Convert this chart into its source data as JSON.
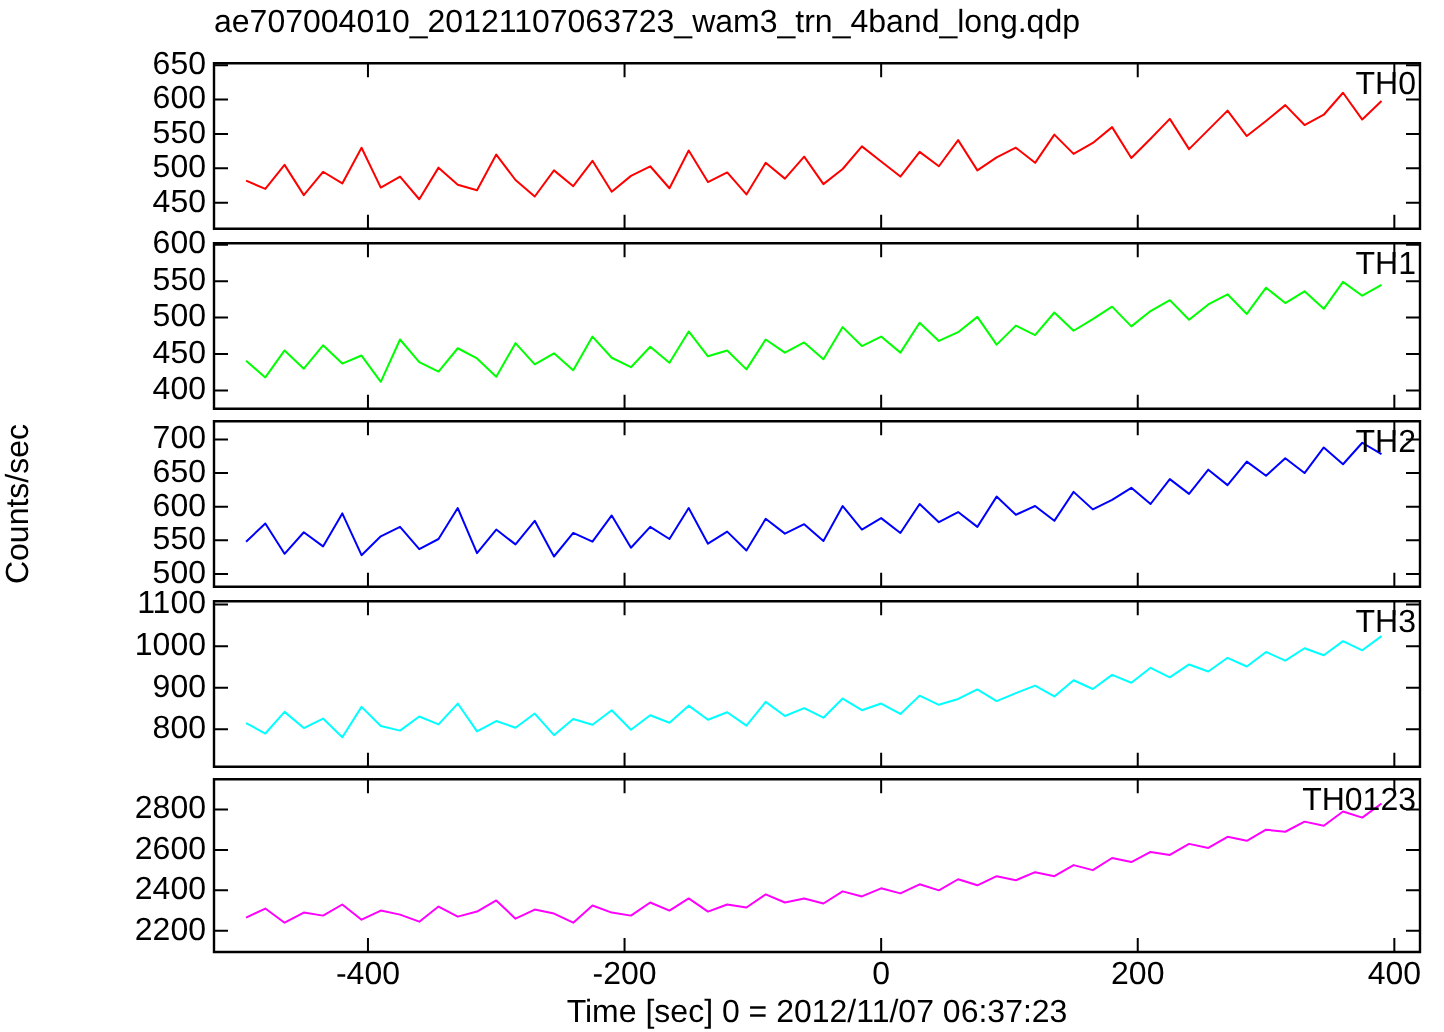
{
  "chart_data": [
    {
      "type": "line",
      "title": "ae707004010_20121107063723_wam3_trn_4band_long.qdp",
      "x": [
        -495,
        -480,
        -465,
        -450,
        -435,
        -420,
        -405,
        -390,
        -375,
        -360,
        -345,
        -330,
        -315,
        -300,
        -285,
        -270,
        -255,
        -240,
        -225,
        -210,
        -195,
        -180,
        -165,
        -150,
        -135,
        -120,
        -105,
        -90,
        -75,
        -60,
        -45,
        -30,
        -15,
        0,
        15,
        30,
        45,
        60,
        75,
        90,
        105,
        120,
        135,
        150,
        165,
        180,
        195,
        210,
        225,
        240,
        255,
        270,
        285,
        300,
        315,
        330,
        345,
        360,
        375,
        390
      ],
      "xlim": [
        -520,
        420
      ],
      "xticks": [
        -400,
        -200,
        0,
        200,
        400
      ],
      "ylim": [
        412,
        653
      ],
      "yticks": [
        450,
        500,
        550,
        600,
        650
      ],
      "tick_labels": "y",
      "series": [
        {
          "name": "TH0",
          "color": "#ff0000",
          "values": [
            482,
            470,
            505,
            461,
            495,
            478,
            530,
            472,
            488,
            455,
            501,
            476,
            468,
            520,
            483,
            459,
            497,
            474,
            511,
            466,
            489,
            503,
            471,
            526,
            480,
            494,
            462,
            508,
            485,
            517,
            477,
            499,
            532,
            510,
            488,
            524,
            503,
            541,
            497,
            516,
            530,
            508,
            549,
            521,
            537,
            560,
            515,
            543,
            572,
            528,
            556,
            584,
            547,
            569,
            592,
            563,
            578,
            610,
            571,
            598
          ]
        }
      ]
    },
    {
      "type": "line",
      "x": [
        -495,
        -480,
        -465,
        -450,
        -435,
        -420,
        -405,
        -390,
        -375,
        -360,
        -345,
        -330,
        -315,
        -300,
        -285,
        -270,
        -255,
        -240,
        -225,
        -210,
        -195,
        -180,
        -165,
        -150,
        -135,
        -120,
        -105,
        -90,
        -75,
        -60,
        -45,
        -30,
        -15,
        0,
        15,
        30,
        45,
        60,
        75,
        90,
        105,
        120,
        135,
        150,
        165,
        180,
        195,
        210,
        225,
        240,
        255,
        270,
        285,
        300,
        315,
        330,
        345,
        360,
        375,
        390
      ],
      "xlim": [
        -520,
        420
      ],
      "xticks": [
        -400,
        -200,
        0,
        200,
        400
      ],
      "ylim": [
        375,
        602
      ],
      "yticks": [
        400,
        450,
        500,
        550,
        600
      ],
      "tick_labels": "y",
      "series": [
        {
          "name": "TH1",
          "color": "#00ff00",
          "values": [
            441,
            418,
            455,
            430,
            462,
            437,
            448,
            412,
            470,
            439,
            426,
            458,
            444,
            419,
            465,
            436,
            451,
            428,
            474,
            445,
            432,
            460,
            438,
            481,
            447,
            455,
            429,
            470,
            452,
            466,
            443,
            487,
            461,
            474,
            452,
            493,
            468,
            480,
            501,
            463,
            489,
            476,
            507,
            482,
            498,
            515,
            488,
            509,
            524,
            497,
            518,
            532,
            505,
            541,
            520,
            536,
            512,
            549,
            530,
            545
          ]
        }
      ]
    },
    {
      "type": "line",
      "ylabel": "Counts/sec",
      "x": [
        -495,
        -480,
        -465,
        -450,
        -435,
        -420,
        -405,
        -390,
        -375,
        -360,
        -345,
        -330,
        -315,
        -300,
        -285,
        -270,
        -255,
        -240,
        -225,
        -210,
        -195,
        -180,
        -165,
        -150,
        -135,
        -120,
        -105,
        -90,
        -75,
        -60,
        -45,
        -30,
        -15,
        0,
        15,
        30,
        45,
        60,
        75,
        90,
        105,
        120,
        135,
        150,
        165,
        180,
        195,
        210,
        225,
        240,
        255,
        270,
        285,
        300,
        315,
        330,
        345,
        360,
        375,
        390
      ],
      "xlim": [
        -520,
        420
      ],
      "xticks": [
        -400,
        -200,
        0,
        200,
        400
      ],
      "ylim": [
        481,
        727
      ],
      "yticks": [
        500,
        550,
        600,
        650,
        700
      ],
      "tick_labels": "y",
      "series": [
        {
          "name": "TH2",
          "color": "#0000ff",
          "values": [
            548,
            575,
            530,
            562,
            541,
            590,
            528,
            556,
            570,
            537,
            552,
            598,
            531,
            566,
            544,
            579,
            526,
            561,
            548,
            587,
            539,
            570,
            552,
            598,
            545,
            563,
            535,
            582,
            560,
            574,
            549,
            601,
            566,
            583,
            561,
            604,
            577,
            592,
            570,
            615,
            588,
            601,
            579,
            622,
            596,
            610,
            628,
            604,
            641,
            619,
            655,
            632,
            667,
            646,
            672,
            650,
            688,
            663,
            695,
            678
          ]
        }
      ]
    },
    {
      "type": "line",
      "x": [
        -495,
        -480,
        -465,
        -450,
        -435,
        -420,
        -405,
        -390,
        -375,
        -360,
        -345,
        -330,
        -315,
        -300,
        -285,
        -270,
        -255,
        -240,
        -225,
        -210,
        -195,
        -180,
        -165,
        -150,
        -135,
        -120,
        -105,
        -90,
        -75,
        -60,
        -45,
        -30,
        -15,
        0,
        15,
        30,
        45,
        60,
        75,
        90,
        105,
        120,
        135,
        150,
        165,
        180,
        195,
        210,
        225,
        240,
        255,
        270,
        285,
        300,
        315,
        330,
        345,
        360,
        375,
        390
      ],
      "xlim": [
        -520,
        420
      ],
      "xticks": [
        -400,
        -200,
        0,
        200,
        400
      ],
      "ylim": [
        710,
        1108
      ],
      "yticks": [
        800,
        900,
        1000,
        1100
      ],
      "tick_labels": "y",
      "series": [
        {
          "name": "TH3",
          "color": "#00ffff",
          "values": [
            815,
            790,
            842,
            803,
            826,
            781,
            854,
            808,
            797,
            831,
            812,
            862,
            795,
            820,
            804,
            838,
            786,
            825,
            811,
            846,
            799,
            834,
            816,
            857,
            823,
            841,
            809,
            866,
            832,
            851,
            828,
            874,
            846,
            862,
            837,
            881,
            859,
            873,
            896,
            868,
            887,
            905,
            879,
            918,
            897,
            931,
            912,
            948,
            925,
            956,
            939,
            972,
            951,
            986,
            965,
            995,
            978,
            1012,
            990,
            1024
          ]
        }
      ]
    },
    {
      "type": "line",
      "xlabel": "Time [sec] 0 = 2012/11/07 06:37:23",
      "x": [
        -495,
        -480,
        -465,
        -450,
        -435,
        -420,
        -405,
        -390,
        -375,
        -360,
        -345,
        -330,
        -315,
        -300,
        -285,
        -270,
        -255,
        -240,
        -225,
        -210,
        -195,
        -180,
        -165,
        -150,
        -135,
        -120,
        -105,
        -90,
        -75,
        -60,
        -45,
        -30,
        -15,
        0,
        15,
        30,
        45,
        60,
        75,
        90,
        105,
        120,
        135,
        150,
        165,
        180,
        195,
        210,
        225,
        240,
        255,
        270,
        285,
        300,
        315,
        330,
        345,
        360,
        375,
        390
      ],
      "xlim": [
        -520,
        420
      ],
      "xticks": [
        -400,
        -200,
        0,
        200,
        400
      ],
      "ylim": [
        2095,
        2950
      ],
      "yticks": [
        2200,
        2400,
        2600,
        2800
      ],
      "series": [
        {
          "name": "TH0123",
          "color": "#ff00ff",
          "values": [
            2265,
            2310,
            2240,
            2290,
            2275,
            2330,
            2255,
            2300,
            2280,
            2245,
            2320,
            2270,
            2295,
            2350,
            2260,
            2305,
            2285,
            2240,
            2325,
            2290,
            2275,
            2340,
            2300,
            2360,
            2295,
            2330,
            2315,
            2380,
            2340,
            2360,
            2335,
            2395,
            2370,
            2410,
            2385,
            2430,
            2400,
            2455,
            2425,
            2470,
            2450,
            2490,
            2470,
            2525,
            2500,
            2560,
            2540,
            2590,
            2575,
            2630,
            2610,
            2665,
            2645,
            2700,
            2690,
            2740,
            2720,
            2790,
            2760,
            2830
          ]
        }
      ]
    }
  ]
}
